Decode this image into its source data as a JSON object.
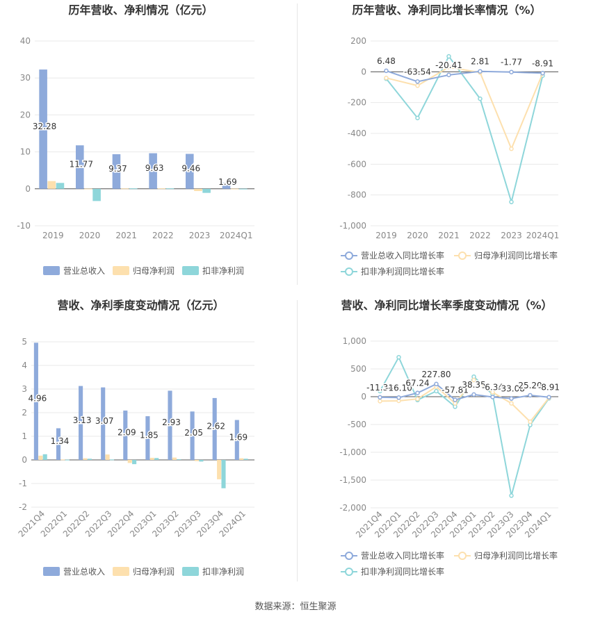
{
  "colors": {
    "revenue": "#8eaadb",
    "net_profit": "#fde0ae",
    "deducted_profit": "#8ed6da",
    "grid": "#e8e8e8",
    "axis_text": "#888888",
    "title": "#333333"
  },
  "source": "数据来源：恒生聚源",
  "chart_data": [
    {
      "id": "annual-amount",
      "type": "bar",
      "title": "历年营收、净利情况（亿元）",
      "categories": [
        "2019",
        "2020",
        "2021",
        "2022",
        "2023",
        "2024Q1"
      ],
      "series": [
        {
          "name": "营业总收入",
          "values": [
            32.28,
            11.77,
            9.37,
            9.63,
            9.46,
            1.69
          ]
        },
        {
          "name": "归母净利润",
          "values": [
            2.1,
            0.05,
            0.1,
            0.12,
            -0.6,
            0.05
          ]
        },
        {
          "name": "扣非净利润",
          "values": [
            1.6,
            -3.3,
            0.12,
            0.12,
            -1.1,
            0.03
          ]
        }
      ],
      "data_labels": [
        "32.28",
        "11.77",
        "9.37",
        "9.63",
        "9.46",
        "1.69"
      ],
      "yticks": [
        "40",
        "30",
        "20",
        "10",
        "0",
        "-10"
      ],
      "ylim": [
        -10,
        40
      ],
      "legend_position": "bottom",
      "grid": true
    },
    {
      "id": "annual-growth",
      "type": "line",
      "title": "历年营收、净利同比增长率情况（%）",
      "categories": [
        "2019",
        "2020",
        "2021",
        "2022",
        "2023",
        "2024Q1"
      ],
      "series": [
        {
          "name": "营业总收入同比增长率",
          "values": [
            6.48,
            -63.54,
            -20.41,
            2.81,
            -1.77,
            -8.91
          ]
        },
        {
          "name": "归母净利润同比增长率",
          "values": [
            -40,
            -90,
            30,
            -5,
            -500,
            -10
          ]
        },
        {
          "name": "扣非净利润同比增长率",
          "values": [
            -45,
            -300,
            100,
            -175,
            -845,
            -25
          ]
        }
      ],
      "data_labels": [
        "6.48",
        "-63.54",
        "-20.41",
        "2.81",
        "-1.77",
        "-8.91"
      ],
      "yticks": [
        "200",
        "0",
        "-200",
        "-400",
        "-600",
        "-800",
        "-1,000"
      ],
      "ylim": [
        -1000,
        200
      ],
      "legend_position": "bottom",
      "grid": true
    },
    {
      "id": "quarterly-amount",
      "type": "bar",
      "title": "营收、净利季度变动情况（亿元）",
      "categories": [
        "2021Q4",
        "2022Q1",
        "2022Q2",
        "2022Q3",
        "2022Q4",
        "2023Q1",
        "2023Q2",
        "2023Q3",
        "2023Q4",
        "2024Q1"
      ],
      "series": [
        {
          "name": "营业总收入",
          "values": [
            4.96,
            1.34,
            3.13,
            3.07,
            2.09,
            1.85,
            2.93,
            2.05,
            2.62,
            1.69
          ]
        },
        {
          "name": "归母净利润",
          "values": [
            0.18,
            0.02,
            0.07,
            0.23,
            -0.13,
            0.09,
            0.1,
            -0.05,
            -0.82,
            0.07
          ]
        },
        {
          "name": "扣非净利润",
          "values": [
            0.24,
            0.01,
            0.05,
            0.02,
            -0.18,
            0.08,
            0.03,
            -0.07,
            -1.2,
            0.05
          ]
        }
      ],
      "data_labels": [
        "4.96",
        "1.34",
        "3.13",
        "3.07",
        "2.09",
        "1.85",
        "2.93",
        "2.05",
        "2.62",
        "1.69"
      ],
      "yticks": [
        "5",
        "4",
        "3",
        "2",
        "1",
        "0",
        "-1",
        "-2"
      ],
      "ylim": [
        -2,
        5
      ],
      "legend_position": "bottom",
      "grid": true
    },
    {
      "id": "quarterly-growth",
      "type": "line",
      "title": "营收、净利同比增长率季度变动情况（%）",
      "categories": [
        "2021Q4",
        "2022Q1",
        "2022Q2",
        "2022Q3",
        "2022Q4",
        "2023Q1",
        "2023Q2",
        "2023Q3",
        "2023Q4",
        "2024Q1"
      ],
      "series": [
        {
          "name": "营业总收入同比增长率",
          "values": [
            -11.38,
            -16.1,
            67.24,
            227.8,
            -57.81,
            38.35,
            -6.34,
            -33.08,
            25.2,
            -8.91
          ]
        },
        {
          "name": "归母净利润同比增长率",
          "values": [
            -80,
            -75,
            -40,
            180,
            -120,
            300,
            80,
            -120,
            -450,
            -20
          ]
        },
        {
          "name": "扣非净利润同比增长率",
          "values": [
            100,
            710,
            -60,
            100,
            -180,
            360,
            40,
            -1780,
            -510,
            -30
          ]
        }
      ],
      "data_labels": [
        "-11.38",
        "-16.10",
        "67.24",
        "227.80",
        "-57.81",
        "38.35",
        "-6.34",
        "-33.08",
        "25.20",
        "-8.91"
      ],
      "yticks": [
        "1,000",
        "500",
        "0",
        "-500",
        "-1,000",
        "-1,500",
        "-2,000"
      ],
      "ylim": [
        -2000,
        1000
      ],
      "legend_position": "bottom",
      "grid": true
    }
  ]
}
